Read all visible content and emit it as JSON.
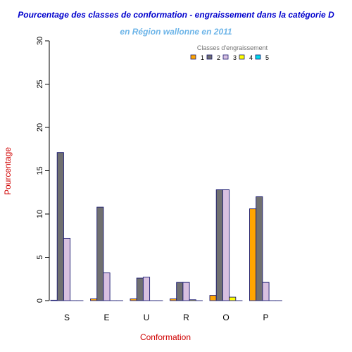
{
  "chart_data": {
    "type": "bar",
    "title": "Pourcentage des classes de conformation - engraissement dans la catégorie D",
    "subtitle": "en Région wallonne en 2011",
    "xlabel": "Conformation",
    "ylabel": "Pourcentage",
    "ylim": [
      0,
      30
    ],
    "yticks": [
      0,
      5,
      10,
      15,
      20,
      25,
      30
    ],
    "categories": [
      "S",
      "E",
      "U",
      "R",
      "O",
      "P"
    ],
    "legend": {
      "title": "Classes d'engraissement",
      "placement": "top-right"
    },
    "grid": false,
    "series": [
      {
        "name": "1",
        "color": "#ffa500",
        "values": [
          0.05,
          0.2,
          0.2,
          0.2,
          0.6,
          10.6
        ]
      },
      {
        "name": "2",
        "color": "#707070",
        "values": [
          17.1,
          10.8,
          2.6,
          2.1,
          12.8,
          12.0
        ]
      },
      {
        "name": "3",
        "color": "#d8c0e0",
        "values": [
          7.2,
          3.2,
          2.7,
          2.1,
          12.8,
          2.1
        ]
      },
      {
        "name": "4",
        "color": "#ffff00",
        "values": [
          0.0,
          0.0,
          0.0,
          0.1,
          0.4,
          0.0
        ]
      },
      {
        "name": "5",
        "color": "#00d8e8",
        "values": [
          0.0,
          0.0,
          0.0,
          0.0,
          0.0,
          0.0
        ]
      }
    ]
  }
}
